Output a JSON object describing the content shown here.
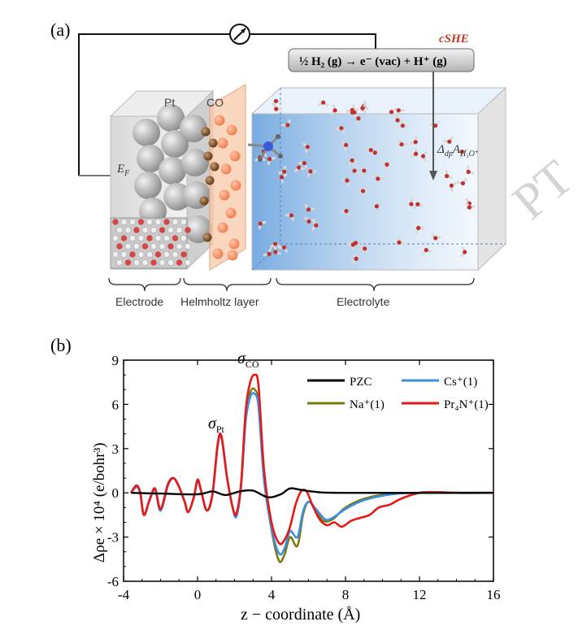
{
  "panel_a": {
    "label": "(a)",
    "cshe": "cSHE",
    "reaction": "½ H₂ (g) → e⁻ (vac) + H⁺ (g)",
    "pt_label": "Pt",
    "co_label": "CO",
    "ef_label": "E",
    "ef_sub": "F",
    "dp_label": "Δ",
    "dp_sub": "dp",
    "dp_main": "A",
    "dp_species": "H₃O⁺",
    "region_electrode": "Electrode",
    "region_helmholtz": "Helmholtz layer",
    "region_electrolyte": "Electrolyte",
    "watermark": "PT"
  },
  "panel_b": {
    "label": "(b)",
    "peak_pt": "σ",
    "peak_pt_sub": "Pt",
    "peak_co": "σ",
    "peak_co_sub": "CO"
  },
  "colors": {
    "pzc": "#000000",
    "na": "#7a7a10",
    "cs": "#3a8fe0",
    "pr4n": "#e81818"
  },
  "chart_data": {
    "type": "line",
    "title": "",
    "xlabel": "z − coordinate (Å)",
    "ylabel": "Δρe × 10⁴ (e/bohr³)",
    "xlim": [
      -4,
      16
    ],
    "ylim": [
      -6,
      9
    ],
    "xticks": [
      -4,
      0,
      4,
      8,
      12,
      16
    ],
    "yticks": [
      -6,
      -3,
      0,
      3,
      6,
      9
    ],
    "legend_position": "top-right",
    "annotations": [
      {
        "text": "σPt",
        "x": 1.3,
        "y": 4.6
      },
      {
        "text": "σCO",
        "x": 3.0,
        "y": 8.6
      }
    ],
    "series": [
      {
        "name": "PZC",
        "legend": "PZC",
        "color_key": "pzc",
        "points": [
          [
            -3.6,
            0
          ],
          [
            -2,
            -0.05
          ],
          [
            0,
            -0.1
          ],
          [
            0.8,
            0.1
          ],
          [
            1.5,
            -0.15
          ],
          [
            2.3,
            0.1
          ],
          [
            3,
            0.15
          ],
          [
            3.8,
            -0.3
          ],
          [
            4.5,
            -0.1
          ],
          [
            5,
            0.3
          ],
          [
            5.6,
            0.2
          ],
          [
            6.5,
            0.05
          ],
          [
            8,
            0
          ],
          [
            16,
            0
          ]
        ]
      },
      {
        "name": "Na+(1)",
        "legend": "Na⁺(1)",
        "color_key": "na",
        "points": [
          [
            -3.6,
            0
          ],
          [
            -3.3,
            0.4
          ],
          [
            -3.1,
            0
          ],
          [
            -2.9,
            -1.5
          ],
          [
            -2.6,
            -0.5
          ],
          [
            -2.3,
            0.2
          ],
          [
            -2,
            -1.2
          ],
          [
            -1.6,
            0.5
          ],
          [
            -1.3,
            1.0
          ],
          [
            -1.0,
            0.4
          ],
          [
            -0.7,
            -0.6
          ],
          [
            -0.5,
            -1.3
          ],
          [
            -0.2,
            -0.3
          ],
          [
            0,
            0.8
          ],
          [
            0.2,
            0.1
          ],
          [
            0.5,
            -1.2
          ],
          [
            0.8,
            -0.2
          ],
          [
            1.1,
            3.3
          ],
          [
            1.3,
            3.7
          ],
          [
            1.6,
            1.0
          ],
          [
            1.9,
            -1.0
          ],
          [
            2.1,
            -1.5
          ],
          [
            2.35,
            0.5
          ],
          [
            2.6,
            5.0
          ],
          [
            2.85,
            6.8
          ],
          [
            3.1,
            7.0
          ],
          [
            3.3,
            6.0
          ],
          [
            3.6,
            1.0
          ],
          [
            4.0,
            -2.5
          ],
          [
            4.4,
            -4.6
          ],
          [
            4.7,
            -4.2
          ],
          [
            5.0,
            -3.0
          ],
          [
            5.4,
            -3.6
          ],
          [
            5.7,
            -1.5
          ],
          [
            6.0,
            -0.6
          ],
          [
            6.4,
            -1.2
          ],
          [
            6.8,
            -1.9
          ],
          [
            7.3,
            -1.8
          ],
          [
            8.0,
            -1.0
          ],
          [
            9.0,
            -0.4
          ],
          [
            10.5,
            -0.05
          ],
          [
            12,
            0
          ],
          [
            16,
            0
          ]
        ]
      },
      {
        "name": "Cs+(1)",
        "legend": "Cs⁺(1)",
        "color_key": "cs",
        "points": [
          [
            -3.6,
            0
          ],
          [
            -3.3,
            0.4
          ],
          [
            -3.1,
            0
          ],
          [
            -2.9,
            -1.5
          ],
          [
            -2.6,
            -0.5
          ],
          [
            -2.3,
            0.2
          ],
          [
            -2,
            -1.2
          ],
          [
            -1.6,
            0.5
          ],
          [
            -1.3,
            1.0
          ],
          [
            -1.0,
            0.4
          ],
          [
            -0.7,
            -0.6
          ],
          [
            -0.5,
            -1.3
          ],
          [
            -0.2,
            -0.3
          ],
          [
            0,
            0.8
          ],
          [
            0.2,
            0.1
          ],
          [
            0.5,
            -1.2
          ],
          [
            0.8,
            -0.2
          ],
          [
            1.1,
            3.3
          ],
          [
            1.3,
            3.7
          ],
          [
            1.6,
            1.0
          ],
          [
            1.9,
            -1.0
          ],
          [
            2.1,
            -1.6
          ],
          [
            2.35,
            0.4
          ],
          [
            2.6,
            4.8
          ],
          [
            2.85,
            6.5
          ],
          [
            3.1,
            6.7
          ],
          [
            3.3,
            5.8
          ],
          [
            3.6,
            0.8
          ],
          [
            4.0,
            -2.4
          ],
          [
            4.4,
            -4.1
          ],
          [
            4.7,
            -3.8
          ],
          [
            5.0,
            -2.6
          ],
          [
            5.4,
            -3.0
          ],
          [
            5.7,
            -1.3
          ],
          [
            6.0,
            -0.6
          ],
          [
            6.4,
            -1.1
          ],
          [
            6.9,
            -1.8
          ],
          [
            7.3,
            -1.7
          ],
          [
            8.0,
            -1.1
          ],
          [
            9.0,
            -0.5
          ],
          [
            10.5,
            -0.1
          ],
          [
            12,
            0
          ],
          [
            16,
            0
          ]
        ]
      },
      {
        "name": "Pr4N+(1)",
        "legend": "Pr₄N⁺(1)",
        "color_key": "pr4n",
        "points": [
          [
            -3.6,
            0
          ],
          [
            -3.3,
            0.5
          ],
          [
            -3.1,
            0
          ],
          [
            -2.9,
            -1.5
          ],
          [
            -2.6,
            -0.5
          ],
          [
            -2.3,
            0.3
          ],
          [
            -2,
            -1.1
          ],
          [
            -1.6,
            0.6
          ],
          [
            -1.3,
            1.0
          ],
          [
            -1.0,
            0.4
          ],
          [
            -0.7,
            -0.6
          ],
          [
            -0.5,
            -1.3
          ],
          [
            -0.2,
            -0.3
          ],
          [
            0,
            0.9
          ],
          [
            0.2,
            0.1
          ],
          [
            0.5,
            -1.2
          ],
          [
            0.8,
            -0.1
          ],
          [
            1.1,
            3.4
          ],
          [
            1.3,
            3.8
          ],
          [
            1.6,
            1.0
          ],
          [
            1.9,
            -1.0
          ],
          [
            2.1,
            -1.4
          ],
          [
            2.35,
            0.6
          ],
          [
            2.6,
            5.5
          ],
          [
            2.85,
            7.5
          ],
          [
            3.1,
            8.0
          ],
          [
            3.3,
            7.2
          ],
          [
            3.6,
            1.5
          ],
          [
            4.0,
            -2.0
          ],
          [
            4.4,
            -3.4
          ],
          [
            4.7,
            -3.2
          ],
          [
            5.0,
            -2.3
          ],
          [
            5.3,
            -0.8
          ],
          [
            5.6,
            0.1
          ],
          [
            5.9,
            0.1
          ],
          [
            6.2,
            -0.8
          ],
          [
            6.6,
            -1.8
          ],
          [
            7.0,
            -2.2
          ],
          [
            7.4,
            -2.0
          ],
          [
            7.8,
            -2.3
          ],
          [
            8.3,
            -1.9
          ],
          [
            8.8,
            -1.7
          ],
          [
            9.3,
            -1.5
          ],
          [
            9.8,
            -1.0
          ],
          [
            10.4,
            -0.8
          ],
          [
            11.0,
            -0.4
          ],
          [
            12,
            0
          ],
          [
            13,
            0.05
          ],
          [
            14,
            0
          ],
          [
            16,
            0
          ]
        ]
      }
    ]
  }
}
